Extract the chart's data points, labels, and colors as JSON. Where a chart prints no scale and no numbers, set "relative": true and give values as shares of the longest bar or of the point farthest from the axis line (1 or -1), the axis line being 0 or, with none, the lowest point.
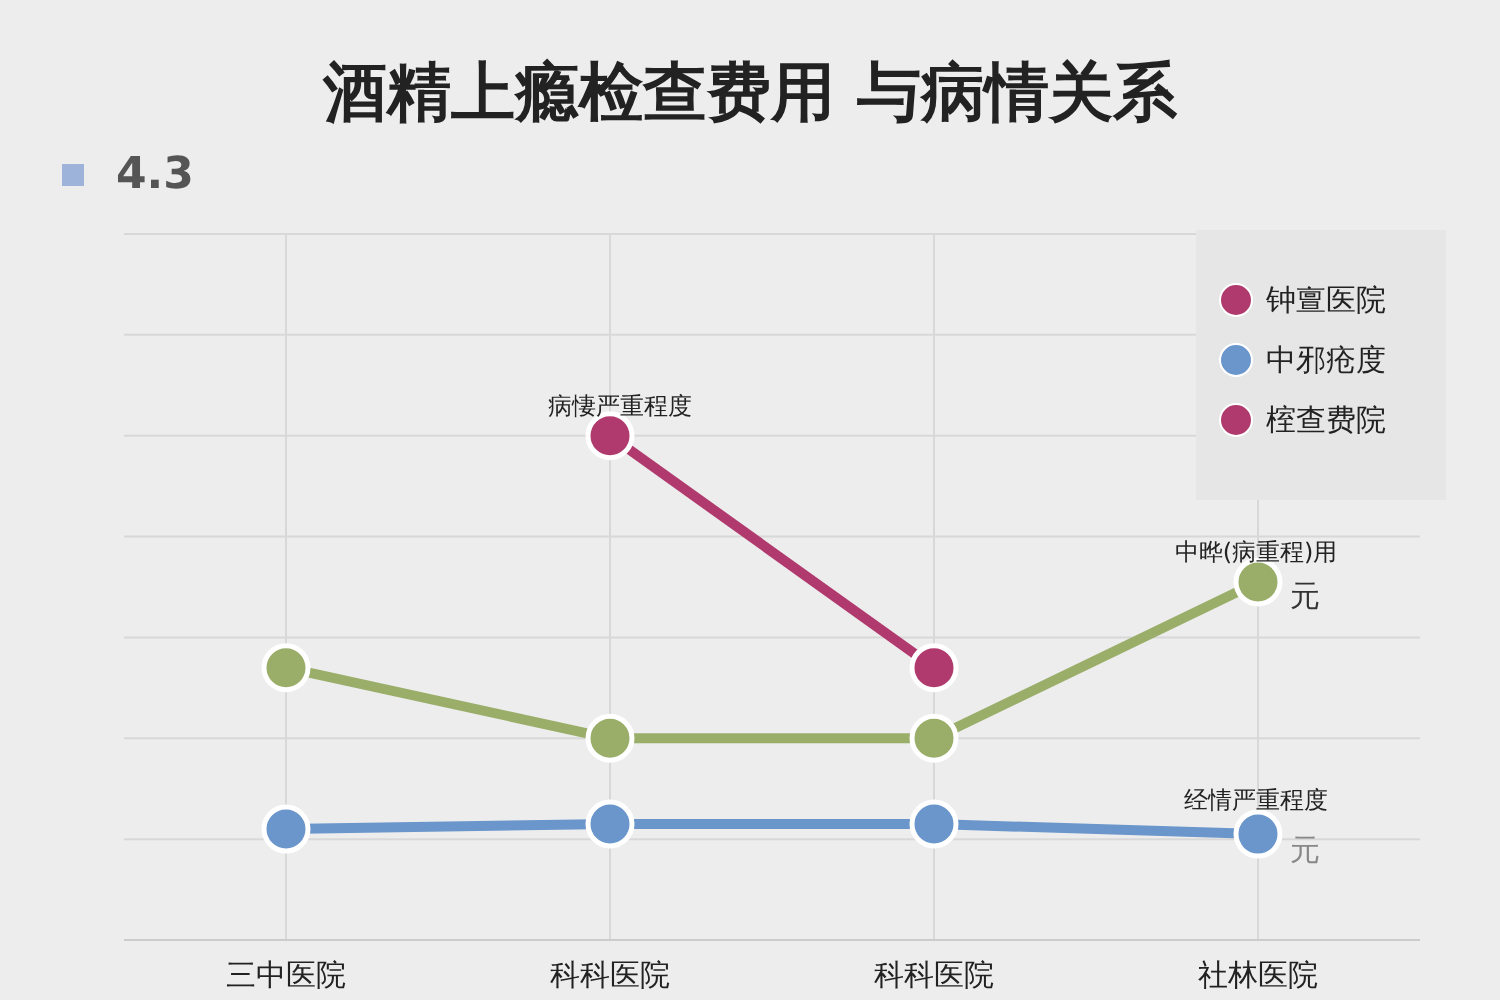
{
  "chart_data": {
    "type": "line",
    "title": "酒精上瘾检查费用 与病情关系",
    "relative": true,
    "categories": [
      "三中医院",
      "科科医院",
      "科科医院",
      "社林医院"
    ],
    "series": [
      {
        "name": "钟亶医院",
        "color": "#b03a6e",
        "values": [
          null,
          1,
          0.54,
          null
        ]
      },
      {
        "name": "中邪疮度",
        "color": "#6a96cc",
        "values": [
          0.22,
          0.23,
          0.23,
          0.21
        ]
      },
      {
        "name": "榁查费院",
        "color": "#b03a6e",
        "values": [
          null,
          null,
          null,
          null
        ]
      },
      {
        "color": "#9aae6a",
        "values": [
          0.54,
          0.4,
          0.4,
          0.71
        ]
      }
    ],
    "annotations": [
      "4.3",
      "病悽严重程度",
      "中晔(病重程)用",
      "元",
      "经情严重程度",
      "元"
    ],
    "grid": true,
    "legend": "top right",
    "marker": "circle",
    "line_style": "solid"
  }
}
